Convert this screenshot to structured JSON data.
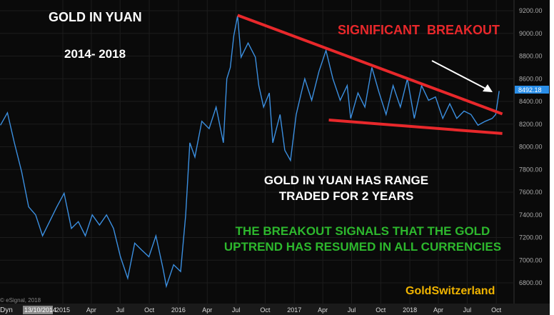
{
  "chart_data": {
    "type": "line",
    "title": "GOLD IN YUAN",
    "subtitle": "2014- 2018",
    "ylim": [
      6700,
      9300
    ],
    "y_ticks": [
      "9200.00",
      "9000.00",
      "8800.00",
      "8600.00",
      "8400.00",
      "8200.00",
      "8000.00",
      "7800.00",
      "7600.00",
      "7400.00",
      "7200.00",
      "7000.00",
      "6800.00"
    ],
    "x_ticks": [
      [
        "2015",
        "2015-01-01"
      ],
      [
        "Apr",
        "2015-04-01"
      ],
      [
        "Jul",
        "2015-07-01"
      ],
      [
        "Oct",
        "2015-10-01"
      ],
      [
        "2016",
        "2016-01-01"
      ],
      [
        "Apr",
        "2016-04-01"
      ],
      [
        "Jul",
        "2016-07-01"
      ],
      [
        "Oct",
        "2016-10-01"
      ],
      [
        "2017",
        "2017-01-01"
      ],
      [
        "Apr",
        "2017-04-01"
      ],
      [
        "Jul",
        "2017-07-01"
      ],
      [
        "Oct",
        "2017-10-01"
      ],
      [
        "2018",
        "2018-01-01"
      ],
      [
        "Apr",
        "2018-04-01"
      ],
      [
        "Jul",
        "2018-07-01"
      ],
      [
        "Oct",
        "2018-10-01"
      ]
    ],
    "grid": true,
    "last_value": "8492.18",
    "cursor_date": "13/10/2014",
    "axis_prefix": "Dyn",
    "copyright": "© eSignal, 2018",
    "line_color": "#3b8fe0",
    "series": [
      {
        "points": [
          [
            "2014-06-18",
            8190
          ],
          [
            "2014-07-10",
            8300
          ],
          [
            "2014-08-01",
            8035
          ],
          [
            "2014-08-24",
            7780
          ],
          [
            "2014-09-15",
            7470
          ],
          [
            "2014-10-07",
            7400
          ],
          [
            "2014-10-29",
            7215
          ],
          [
            "2014-11-20",
            7340
          ],
          [
            "2014-12-13",
            7470
          ],
          [
            "2015-01-05",
            7590
          ],
          [
            "2015-01-28",
            7280
          ],
          [
            "2015-02-19",
            7340
          ],
          [
            "2015-03-13",
            7215
          ],
          [
            "2015-04-04",
            7400
          ],
          [
            "2015-04-27",
            7310
          ],
          [
            "2015-05-19",
            7400
          ],
          [
            "2015-06-10",
            7280
          ],
          [
            "2015-07-02",
            7030
          ],
          [
            "2015-07-25",
            6840
          ],
          [
            "2015-08-16",
            7150
          ],
          [
            "2015-09-07",
            7090
          ],
          [
            "2015-09-30",
            7030
          ],
          [
            "2015-10-22",
            7215
          ],
          [
            "2015-11-13",
            6930
          ],
          [
            "2015-11-24",
            6770
          ],
          [
            "2015-12-17",
            6960
          ],
          [
            "2016-01-08",
            6900
          ],
          [
            "2016-01-24",
            7400
          ],
          [
            "2016-02-06",
            8035
          ],
          [
            "2016-02-22",
            7910
          ],
          [
            "2016-03-15",
            8225
          ],
          [
            "2016-04-07",
            8160
          ],
          [
            "2016-04-29",
            8350
          ],
          [
            "2016-05-22",
            8035
          ],
          [
            "2016-06-02",
            8600
          ],
          [
            "2016-06-13",
            8700
          ],
          [
            "2016-06-24",
            8980
          ],
          [
            "2016-07-06",
            9155
          ],
          [
            "2016-07-17",
            8790
          ],
          [
            "2016-08-08",
            8915
          ],
          [
            "2016-08-31",
            8790
          ],
          [
            "2016-09-11",
            8540
          ],
          [
            "2016-09-26",
            8350
          ],
          [
            "2016-10-14",
            8475
          ],
          [
            "2016-10-25",
            8035
          ],
          [
            "2016-11-17",
            8285
          ],
          [
            "2016-12-02",
            7970
          ],
          [
            "2016-12-20",
            7880
          ],
          [
            "2017-01-07",
            8285
          ],
          [
            "2017-01-23",
            8475
          ],
          [
            "2017-02-03",
            8600
          ],
          [
            "2017-02-25",
            8410
          ],
          [
            "2017-03-20",
            8665
          ],
          [
            "2017-04-11",
            8850
          ],
          [
            "2017-05-03",
            8600
          ],
          [
            "2017-05-26",
            8410
          ],
          [
            "2017-06-17",
            8540
          ],
          [
            "2017-06-28",
            8250
          ],
          [
            "2017-07-21",
            8475
          ],
          [
            "2017-08-12",
            8350
          ],
          [
            "2017-09-03",
            8700
          ],
          [
            "2017-09-26",
            8475
          ],
          [
            "2017-10-18",
            8285
          ],
          [
            "2017-11-09",
            8540
          ],
          [
            "2017-12-02",
            8350
          ],
          [
            "2017-12-24",
            8600
          ],
          [
            "2018-01-15",
            8250
          ],
          [
            "2018-02-07",
            8540
          ],
          [
            "2018-03-01",
            8410
          ],
          [
            "2018-03-23",
            8440
          ],
          [
            "2018-04-15",
            8250
          ],
          [
            "2018-05-07",
            8380
          ],
          [
            "2018-05-29",
            8250
          ],
          [
            "2018-06-21",
            8315
          ],
          [
            "2018-07-13",
            8285
          ],
          [
            "2018-08-04",
            8190
          ],
          [
            "2018-08-27",
            8225
          ],
          [
            "2018-09-18",
            8250
          ],
          [
            "2018-09-29",
            8285
          ],
          [
            "2018-10-10",
            8492
          ]
        ]
      }
    ],
    "trendlines": [
      {
        "from": [
          "2016-07-06",
          9160
        ],
        "to": [
          "2018-10-20",
          8290
        ],
        "color": "#e8282b"
      },
      {
        "from": [
          "2017-04-20",
          8236
        ],
        "to": [
          "2018-10-20",
          8117
        ],
        "color": "#e8282b"
      }
    ],
    "annotations": {
      "breakout": "SIGNIFICANT  BREAKOUT",
      "range": [
        "GOLD IN YUAN HAS RANGE",
        "TRADED FOR 2 YEARS"
      ],
      "signal": [
        "THE BREAKOUT SIGNALS THAT THE GOLD",
        "UPTREND HAS RESUMED IN ALL CURRENCIES"
      ],
      "brand": "GoldSwitzerland"
    },
    "colors": {
      "red": "#e8282b",
      "green": "#2db82d",
      "brand": "#f0b400"
    }
  }
}
